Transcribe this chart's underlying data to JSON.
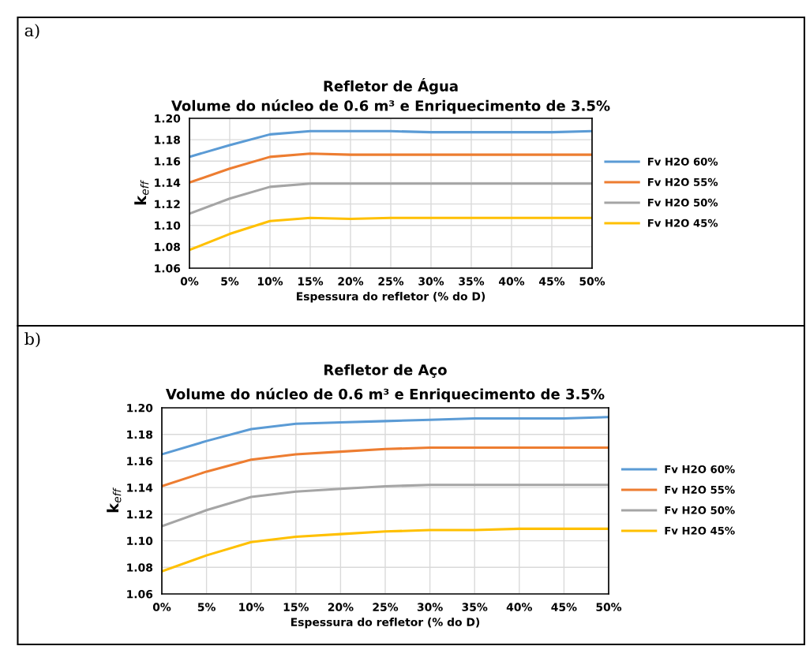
{
  "chart_data": [
    {
      "type": "line",
      "title": "Refletor de Água",
      "subtitle": "Volume do núcleo de 0.6 m³ e Enriquecimento de 3.5%",
      "xlabel": "Espessura do refletor (% do D)",
      "ylabel": "k$_{eff}$",
      "annotations": [
        "a)"
      ],
      "x": [
        0,
        5,
        10,
        15,
        20,
        25,
        30,
        35,
        40,
        45,
        50
      ],
      "series": [
        {
          "name": "Fv H2O 60%",
          "color": "#5b9bd5",
          "values": [
            1.164,
            1.175,
            1.185,
            1.188,
            1.188,
            1.188,
            1.187,
            1.187,
            1.187,
            1.187,
            1.188
          ]
        },
        {
          "name": "Fv H2O 55%",
          "color": "#ed7d31",
          "values": [
            1.14,
            1.153,
            1.164,
            1.167,
            1.166,
            1.166,
            1.166,
            1.166,
            1.166,
            1.166,
            1.166
          ]
        },
        {
          "name": "Fv H2O 50%",
          "color": "#a5a5a5",
          "values": [
            1.111,
            1.125,
            1.136,
            1.139,
            1.139,
            1.139,
            1.139,
            1.139,
            1.139,
            1.139,
            1.139
          ]
        },
        {
          "name": "Fv H2O 45%",
          "color": "#ffc000",
          "values": [
            1.077,
            1.092,
            1.104,
            1.107,
            1.106,
            1.107,
            1.107,
            1.107,
            1.107,
            1.107,
            1.107
          ]
        }
      ],
      "xlim": [
        0,
        50
      ],
      "xticks": [
        {
          "value": 0,
          "label": "0%"
        },
        {
          "value": 5,
          "label": "5%"
        },
        {
          "value": 10,
          "label": "10%"
        },
        {
          "value": 15,
          "label": "15%"
        },
        {
          "value": 20,
          "label": "20%"
        },
        {
          "value": 25,
          "label": "25%"
        },
        {
          "value": 30,
          "label": "30%"
        },
        {
          "value": 35,
          "label": "35%"
        },
        {
          "value": 40,
          "label": "40%"
        },
        {
          "value": 45,
          "label": "45%"
        },
        {
          "value": 50,
          "label": "50%"
        }
      ],
      "ylim": [
        1.06,
        1.2
      ],
      "yticks": [
        {
          "value": 1.06,
          "label": "1.06"
        },
        {
          "value": 1.08,
          "label": "1.08"
        },
        {
          "value": 1.1,
          "label": "1.10"
        },
        {
          "value": 1.12,
          "label": "1.12"
        },
        {
          "value": 1.14,
          "label": "1.14"
        },
        {
          "value": 1.16,
          "label": "1.16"
        },
        {
          "value": 1.18,
          "label": "1.18"
        },
        {
          "value": 1.2,
          "label": "1.20"
        }
      ],
      "grid": true,
      "legend": "right",
      "line_style": "solid"
    },
    {
      "type": "line",
      "title": "Refletor de Aço",
      "subtitle": "Volume do núcleo de 0.6 m³ e Enriquecimento de 3.5%",
      "xlabel": "Espessura do refletor (% do D)",
      "ylabel": "k$_{eff}$",
      "annotations": [
        "b)"
      ],
      "x": [
        0,
        5,
        10,
        15,
        20,
        25,
        30,
        35,
        40,
        45,
        50
      ],
      "series": [
        {
          "name": "Fv H2O 60%",
          "color": "#5b9bd5",
          "values": [
            1.165,
            1.175,
            1.184,
            1.188,
            1.189,
            1.19,
            1.191,
            1.192,
            1.192,
            1.192,
            1.193
          ]
        },
        {
          "name": "Fv H2O 55%",
          "color": "#ed7d31",
          "values": [
            1.141,
            1.152,
            1.161,
            1.165,
            1.167,
            1.169,
            1.17,
            1.17,
            1.17,
            1.17,
            1.17
          ]
        },
        {
          "name": "Fv H2O 50%",
          "color": "#a5a5a5",
          "values": [
            1.111,
            1.123,
            1.133,
            1.137,
            1.139,
            1.141,
            1.142,
            1.142,
            1.142,
            1.142,
            1.142
          ]
        },
        {
          "name": "Fv H2O 45%",
          "color": "#ffc000",
          "values": [
            1.077,
            1.089,
            1.099,
            1.103,
            1.105,
            1.107,
            1.108,
            1.108,
            1.109,
            1.109,
            1.109
          ]
        }
      ],
      "xlim": [
        0,
        50
      ],
      "xticks": [
        {
          "value": 0,
          "label": "0%"
        },
        {
          "value": 5,
          "label": "5%"
        },
        {
          "value": 10,
          "label": "10%"
        },
        {
          "value": 15,
          "label": "15%"
        },
        {
          "value": 20,
          "label": "20%"
        },
        {
          "value": 25,
          "label": "25%"
        },
        {
          "value": 30,
          "label": "30%"
        },
        {
          "value": 35,
          "label": "35%"
        },
        {
          "value": 40,
          "label": "40%"
        },
        {
          "value": 45,
          "label": "45%"
        },
        {
          "value": 50,
          "label": "50%"
        }
      ],
      "ylim": [
        1.06,
        1.2
      ],
      "yticks": [
        {
          "value": 1.06,
          "label": "1.06"
        },
        {
          "value": 1.08,
          "label": "1.08"
        },
        {
          "value": 1.1,
          "label": "1.10"
        },
        {
          "value": 1.12,
          "label": "1.12"
        },
        {
          "value": 1.14,
          "label": "1.14"
        },
        {
          "value": 1.16,
          "label": "1.16"
        },
        {
          "value": 1.18,
          "label": "1.18"
        },
        {
          "value": 1.2,
          "label": "1.20"
        }
      ],
      "grid": true,
      "legend": "right",
      "line_style": "solid"
    }
  ]
}
